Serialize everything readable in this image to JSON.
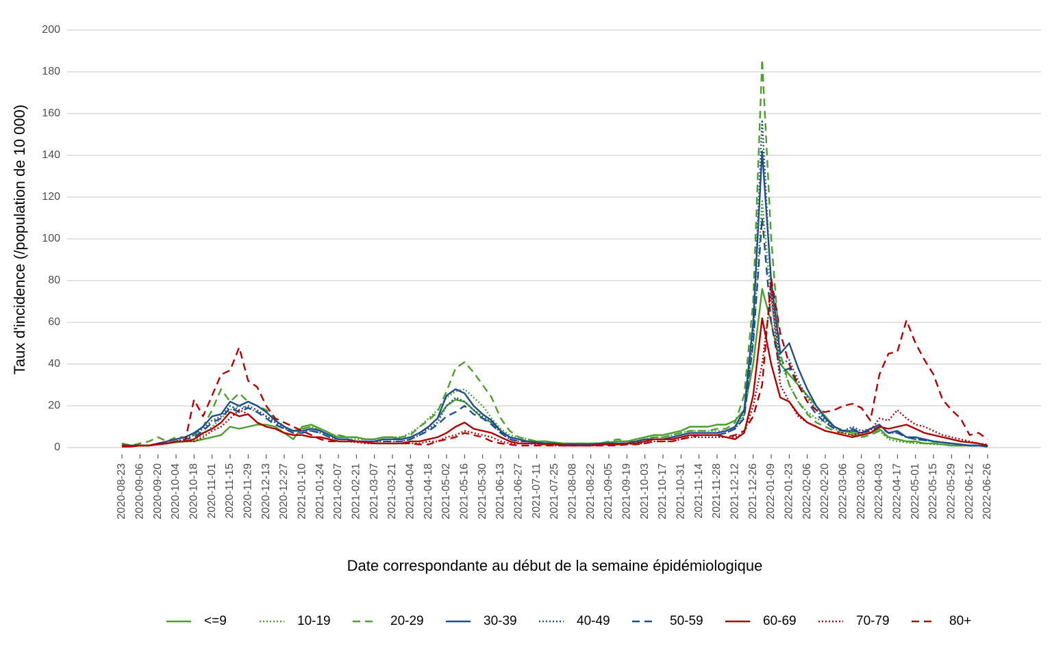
{
  "chart_data": {
    "type": "line",
    "ylabel": "Taux d'incidence (/population de 10 000)",
    "xlabel": "Date correspondante au début de la semaine épidémiologique",
    "ylim": [
      0,
      200
    ],
    "yticks": [
      0,
      20,
      40,
      60,
      80,
      100,
      120,
      140,
      160,
      180,
      200
    ],
    "grid": true,
    "legend": "bottom",
    "categories": [
      "2020-08-23",
      null,
      "2020-09-06",
      null,
      "2020-09-20",
      null,
      "2020-10-04",
      null,
      "2020-10-18",
      null,
      "2020-11-01",
      null,
      "2020-11-15",
      null,
      "2020-11-29",
      null,
      "2020-12-13",
      null,
      "2020-12-27",
      null,
      "2021-01-10",
      null,
      "2021-01-24",
      null,
      "2021-02-07",
      null,
      "2021-02-21",
      null,
      "2021-03-07",
      null,
      "2021-03-21",
      null,
      "2021-04-04",
      null,
      "2021-04-18",
      null,
      "2021-05-02",
      null,
      "2021-05-16",
      null,
      "2021-05-30",
      null,
      "2021-06-13",
      null,
      "2021-06-27",
      null,
      "2021-07-11",
      null,
      "2021-07-25",
      null,
      "2021-08-08",
      null,
      "2021-08-22",
      null,
      "2021-09-05",
      null,
      "2021-09-19",
      null,
      "2021-10-03",
      null,
      "2021-10-17",
      null,
      "2021-10-31",
      null,
      "2021-11-14",
      null,
      "2021-11-28",
      null,
      "2021-12-12",
      null,
      "2021-12-26",
      null,
      "2022-01-09",
      null,
      "2022-01-23",
      null,
      "2022-02-06",
      null,
      "2022-02-20",
      null,
      "2022-03-06",
      null,
      "2022-03-20",
      null,
      "2022-04-03",
      null,
      "2022-04-17",
      null,
      "2022-05-01",
      null,
      "2022-05-15",
      null,
      "2022-05-29",
      null,
      "2022-06-12",
      null,
      "2022-06-26"
    ],
    "series": [
      {
        "name": "<=9",
        "color": "#4a9e2a",
        "dash": "solid",
        "values": [
          2,
          1,
          1,
          1,
          1.5,
          2,
          2.5,
          3,
          3,
          4,
          5,
          6,
          10,
          9,
          10,
          11,
          11,
          10,
          7,
          4,
          10,
          11,
          9,
          7,
          5,
          5,
          5,
          4,
          4,
          5,
          5,
          4,
          5,
          7,
          10,
          14,
          20,
          23,
          22,
          18,
          14,
          12,
          8,
          5,
          4,
          3,
          3,
          3,
          2.5,
          2,
          2,
          2,
          2,
          2,
          2.5,
          3,
          3,
          4,
          5,
          6,
          6,
          7,
          8,
          10,
          10,
          10,
          11,
          11,
          13,
          18,
          40,
          76,
          60,
          40,
          35,
          30,
          25,
          20,
          15,
          10,
          8,
          7,
          6,
          7,
          9,
          5,
          4,
          3,
          3,
          2,
          2,
          1.5,
          1,
          1,
          1,
          1,
          0.5
        ]
      },
      {
        "name": "10-19",
        "color": "#4a9e2a",
        "dash": "dotted",
        "values": [
          1,
          1,
          1,
          1,
          1.5,
          2,
          3,
          3,
          4,
          6,
          10,
          14,
          18,
          20,
          19,
          17,
          15,
          13,
          10,
          8,
          9,
          10,
          8,
          6,
          5,
          5,
          4,
          4,
          4,
          5,
          5,
          5,
          7,
          10,
          14,
          18,
          24,
          27,
          28,
          24,
          20,
          14,
          9,
          6,
          5,
          4,
          3,
          3,
          2,
          2,
          2,
          2,
          2,
          2,
          2.5,
          3,
          3,
          3,
          4,
          5,
          5,
          6,
          7,
          8,
          8,
          8,
          8,
          8,
          10,
          16,
          50,
          118,
          70,
          42,
          30,
          22,
          17,
          14,
          12,
          9,
          7,
          6,
          6,
          7,
          8,
          4,
          3,
          2.5,
          2,
          2,
          1.5,
          1.5,
          1,
          1,
          1,
          1,
          0.5
        ]
      },
      {
        "name": "20-29",
        "color": "#4a9e2a",
        "dash": "dashed",
        "values": [
          2,
          1,
          2,
          3,
          5,
          3,
          5,
          5,
          6,
          10,
          18,
          28,
          22,
          26,
          22,
          20,
          18,
          14,
          10,
          8,
          9,
          10,
          8,
          6,
          6,
          5,
          5,
          4,
          4,
          5,
          5,
          5,
          6,
          10,
          13,
          17,
          27,
          38,
          41,
          36,
          30,
          24,
          14,
          8,
          5,
          4,
          3,
          3,
          2,
          2,
          2,
          2,
          2,
          2,
          3,
          4,
          3,
          3,
          4,
          5,
          5,
          6,
          7,
          8,
          8,
          8,
          9,
          9,
          12,
          25,
          70,
          186,
          100,
          45,
          30,
          22,
          16,
          12,
          10,
          8,
          7,
          6,
          5,
          6,
          8,
          5,
          4,
          3,
          2.5,
          2,
          2,
          1.5,
          1,
          1,
          1,
          1,
          0.5
        ]
      },
      {
        "name": "30-39",
        "color": "#1f4e8c",
        "dash": "solid",
        "values": [
          1,
          1,
          1,
          1,
          2,
          3,
          4,
          5,
          7,
          10,
          15,
          16,
          22,
          20,
          22,
          20,
          17,
          13,
          10,
          8,
          8,
          9,
          8,
          6,
          4,
          4,
          3,
          3,
          3,
          4,
          4,
          4,
          5,
          7,
          10,
          14,
          25,
          28,
          26,
          20,
          16,
          13,
          8,
          5,
          4,
          3,
          2.5,
          2,
          2,
          1.5,
          1.5,
          1.5,
          1.5,
          2,
          2,
          2,
          2,
          3,
          4,
          4,
          4,
          5,
          6,
          7,
          7,
          7,
          7,
          8,
          10,
          18,
          60,
          142,
          80,
          45,
          50,
          38,
          28,
          20,
          14,
          10,
          8,
          8,
          7,
          9,
          11,
          7,
          8,
          5,
          5,
          4,
          3,
          2.5,
          2,
          1.5,
          1,
          1,
          0.5
        ]
      },
      {
        "name": "40-49",
        "color": "#1f4e8c",
        "dash": "dotted",
        "values": [
          1,
          1,
          1,
          1,
          2,
          2,
          3,
          4,
          6,
          9,
          13,
          15,
          20,
          18,
          20,
          18,
          15,
          12,
          9,
          8,
          8,
          8,
          7,
          5,
          4,
          4,
          3,
          3,
          3,
          3,
          3,
          3,
          4,
          6,
          9,
          12,
          20,
          24,
          22,
          18,
          15,
          12,
          7,
          4,
          3,
          3,
          2,
          2,
          2,
          1.5,
          1.5,
          1.5,
          1.5,
          2,
          2,
          2,
          2,
          3,
          3,
          4,
          4,
          4,
          5,
          6,
          6,
          6,
          6,
          7,
          9,
          15,
          55,
          157,
          75,
          40,
          42,
          32,
          24,
          18,
          13,
          10,
          8,
          10,
          8,
          9,
          11,
          7,
          7,
          5,
          4,
          3.5,
          3,
          2.5,
          2,
          1.5,
          1,
          1,
          0.5
        ]
      },
      {
        "name": "50-59",
        "color": "#1f4e8c",
        "dash": "dashed",
        "values": [
          1,
          1,
          1,
          1,
          1.5,
          2,
          3,
          4,
          5,
          8,
          12,
          14,
          19,
          17,
          19,
          17,
          14,
          11,
          9,
          7,
          7,
          8,
          7,
          5,
          4,
          4,
          3,
          3,
          3,
          3,
          3,
          3,
          4,
          6,
          8,
          11,
          15,
          17,
          20,
          16,
          14,
          11,
          7,
          4,
          3,
          3,
          2,
          2,
          2,
          1.5,
          1.5,
          1.5,
          1.5,
          2,
          2,
          2,
          2,
          3,
          3,
          4,
          4,
          4,
          5,
          6,
          6,
          6,
          6,
          7,
          9,
          14,
          50,
          110,
          60,
          36,
          38,
          30,
          22,
          16,
          12,
          9,
          8,
          9,
          7,
          8,
          10,
          7,
          7,
          5,
          4,
          3.5,
          3,
          2.5,
          2,
          1.5,
          1,
          1,
          0.5
        ]
      },
      {
        "name": "60-69",
        "color": "#b30000",
        "dash": "solid",
        "values": [
          0.5,
          0.5,
          1,
          1,
          1.5,
          2,
          3,
          3,
          4,
          7,
          9,
          12,
          17,
          15,
          16,
          12,
          10,
          9,
          7,
          6,
          6,
          5,
          5,
          4,
          3,
          3,
          3,
          2.5,
          2,
          2,
          2,
          2,
          3,
          3,
          4,
          5,
          7,
          10,
          12,
          9,
          8,
          7,
          5,
          3,
          2,
          2,
          2,
          1.5,
          1.5,
          1,
          1,
          1,
          1,
          1.5,
          1.5,
          1.5,
          2,
          2,
          3,
          4,
          4,
          4,
          5,
          6,
          6,
          6,
          6,
          5,
          4,
          7,
          25,
          62,
          40,
          24,
          22,
          16,
          12,
          10,
          8,
          7,
          6,
          5,
          6,
          7,
          10,
          9,
          10,
          11,
          9,
          7,
          6,
          5,
          4,
          3,
          2.5,
          2,
          1
        ]
      },
      {
        "name": "70-79",
        "color": "#b30000",
        "dash": "dotted",
        "values": [
          0.5,
          0.5,
          1,
          1,
          1.5,
          2,
          3,
          3,
          3,
          5,
          8,
          10,
          14,
          18,
          16,
          12,
          10,
          9,
          7,
          6,
          6,
          5,
          5,
          4,
          3,
          3,
          2.5,
          2,
          2,
          2,
          2,
          2,
          2,
          2,
          3,
          3,
          5,
          6,
          8,
          7,
          6,
          5,
          3,
          2,
          2,
          2,
          1.5,
          1.5,
          1,
          1,
          1,
          1,
          1,
          1,
          1.5,
          1.5,
          1.5,
          2,
          2,
          3,
          3,
          3,
          4,
          5,
          5,
          5,
          5,
          5,
          5,
          7,
          20,
          40,
          75,
          30,
          22,
          15,
          12,
          10,
          8,
          7,
          7,
          6,
          7,
          8,
          14,
          13,
          18,
          14,
          11,
          10,
          8,
          6,
          5,
          4,
          3,
          2,
          1.5
        ]
      },
      {
        "name": "80+",
        "color": "#b30000",
        "dash": "dashed",
        "values": [
          1,
          1,
          1,
          1,
          2,
          2,
          3,
          3,
          23,
          15,
          25,
          35,
          37,
          48,
          32,
          29,
          20,
          14,
          12,
          10,
          8,
          6,
          4,
          3,
          3,
          3,
          3,
          2.5,
          2,
          2,
          2,
          2,
          2,
          1.5,
          1.5,
          3,
          4,
          5,
          7,
          6,
          5,
          3,
          2,
          1.5,
          1,
          1,
          1,
          1,
          1,
          1,
          1,
          1,
          1,
          1,
          1,
          1,
          1.5,
          1.5,
          2,
          3,
          3,
          3,
          4,
          5,
          6,
          6,
          6,
          5,
          6,
          8,
          15,
          30,
          81,
          55,
          40,
          30,
          22,
          18,
          17,
          18,
          20,
          21,
          19,
          13,
          35,
          45,
          46,
          61,
          50,
          42,
          35,
          23,
          18,
          14,
          6,
          7,
          4
        ]
      }
    ]
  }
}
